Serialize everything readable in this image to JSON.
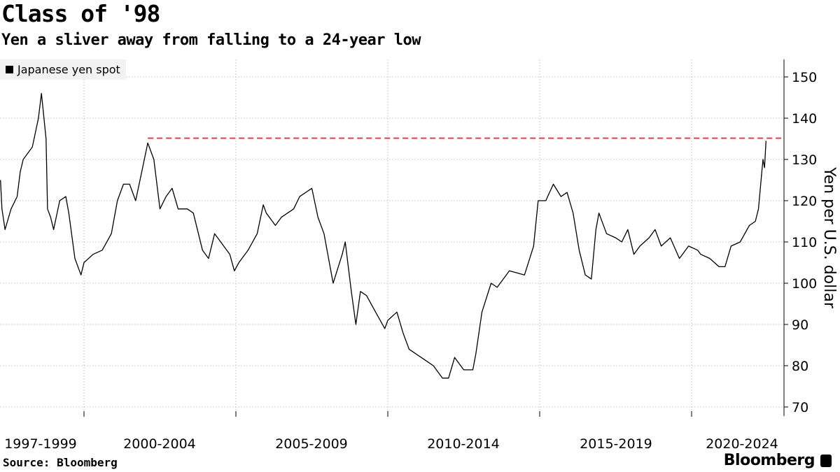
{
  "header": {
    "title": "Class of '98",
    "subtitle": "Yen a sliver away from falling to a 24-year low"
  },
  "footer": {
    "source": "Source: Bloomberg",
    "logo": "Bloomberg"
  },
  "chart_data": {
    "type": "line",
    "title": "Class of '98",
    "subtitle": "Yen a sliver away from falling to a 24-year low",
    "ylabel": "Yen per U.S. dollar",
    "ylim": [
      70,
      155
    ],
    "yticks": [
      70,
      80,
      90,
      100,
      110,
      120,
      130,
      140,
      150
    ],
    "x_range": [
      1997.24,
      2022.6
    ],
    "x_category_labels": [
      "1997-1999",
      "2000-2004",
      "2005-2009",
      "2010-2014",
      "2015-2019",
      "2020-2024"
    ],
    "x_gridlines": [
      2000,
      2005,
      2010,
      2015,
      2020
    ],
    "grid": true,
    "legend_position": "top-left",
    "reference_line": {
      "value": 135.15,
      "from": 2002.1,
      "color": "#e0404a",
      "style": "dashed"
    },
    "series": [
      {
        "name": "Japanese yen spot",
        "color": "#000000",
        "x": [
          1997.25,
          1997.3,
          1997.4,
          1997.6,
          1997.8,
          1997.9,
          1998.0,
          1998.3,
          1998.5,
          1998.6,
          1998.75,
          1998.8,
          1998.9,
          1999.0,
          1999.2,
          1999.4,
          1999.5,
          1999.7,
          1999.9,
          2000.0,
          2000.3,
          2000.6,
          2000.9,
          2001.1,
          2001.3,
          2001.5,
          2001.7,
          2001.9,
          2002.1,
          2002.3,
          2002.5,
          2002.7,
          2002.9,
          2003.1,
          2003.4,
          2003.6,
          2003.9,
          2004.1,
          2004.3,
          2004.5,
          2004.8,
          2004.95,
          2005.1,
          2005.4,
          2005.7,
          2005.9,
          2006.0,
          2006.3,
          2006.5,
          2006.9,
          2007.1,
          2007.5,
          2007.7,
          2007.9,
          2008.0,
          2008.2,
          2008.5,
          2008.6,
          2008.8,
          2008.95,
          2009.1,
          2009.3,
          2009.6,
          2009.9,
          2010.0,
          2010.3,
          2010.5,
          2010.7,
          2010.9,
          2011.1,
          2011.3,
          2011.5,
          2011.8,
          2012.0,
          2012.2,
          2012.5,
          2012.8,
          2012.9,
          2013.1,
          2013.4,
          2013.6,
          2013.9,
          2014.0,
          2014.5,
          2014.8,
          2014.95,
          2015.2,
          2015.45,
          2015.7,
          2015.9,
          2016.1,
          2016.3,
          2016.5,
          2016.7,
          2016.85,
          2016.95,
          2017.2,
          2017.5,
          2017.7,
          2017.9,
          2018.1,
          2018.3,
          2018.6,
          2018.8,
          2019.0,
          2019.3,
          2019.6,
          2019.9,
          2020.2,
          2020.3,
          2020.6,
          2020.9,
          2021.1,
          2021.3,
          2021.6,
          2021.9,
          2022.1,
          2022.2,
          2022.3,
          2022.35,
          2022.4,
          2022.45
        ],
        "values": [
          125,
          118,
          113,
          118,
          121,
          127,
          130,
          133,
          140,
          146,
          135,
          118,
          116,
          113,
          120,
          121,
          117,
          106,
          102,
          105,
          107,
          108,
          112,
          120,
          124,
          124,
          120,
          127,
          134,
          130,
          118,
          121,
          123,
          118,
          118,
          117,
          108,
          106,
          112,
          110,
          107,
          103,
          105,
          108,
          112,
          119,
          117,
          114,
          116,
          118,
          121,
          123,
          116,
          112,
          108,
          100,
          107,
          110,
          98,
          90,
          98,
          97,
          93,
          89,
          91,
          93,
          88,
          84,
          83,
          82,
          81,
          80,
          77,
          77,
          82,
          79,
          79,
          83,
          93,
          100,
          99,
          102,
          103,
          102,
          109,
          120,
          120,
          124,
          121,
          122,
          117,
          108,
          102,
          101,
          113,
          117,
          112,
          111,
          110,
          113,
          107,
          109,
          111,
          113,
          109,
          111,
          106,
          109,
          108,
          107,
          106,
          104,
          104,
          109,
          110,
          114,
          115,
          118,
          126,
          130,
          128,
          134.5
        ]
      }
    ]
  }
}
